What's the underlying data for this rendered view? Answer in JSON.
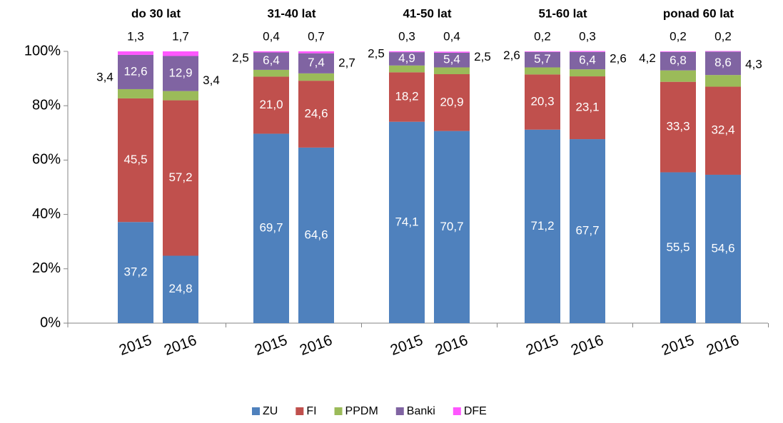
{
  "chart_data": {
    "type": "stacked_bar",
    "groups": [
      "do 30 lat",
      "31-40 lat",
      "41-50 lat",
      "51-60 lat",
      "ponad 60 lat"
    ],
    "categories": [
      "2015",
      "2016",
      "2015",
      "2016",
      "2015",
      "2016",
      "2015",
      "2016",
      "2015",
      "2016"
    ],
    "series": [
      {
        "name": "ZU",
        "color": "#4f81bd",
        "values": [
          37.2,
          24.8,
          69.7,
          64.6,
          74.1,
          70.7,
          71.2,
          67.7,
          55.5,
          54.6
        ],
        "value_labels": [
          "37,2",
          "24,8",
          "69,7",
          "64,6",
          "74,1",
          "70,7",
          "71,2",
          "67,7",
          "55,5",
          "54,6"
        ]
      },
      {
        "name": "FI",
        "color": "#c0504d",
        "values": [
          45.5,
          57.2,
          21.0,
          24.6,
          18.2,
          20.9,
          20.3,
          23.1,
          33.3,
          32.4
        ],
        "value_labels": [
          "45,5",
          "57,2",
          "21,0",
          "24,6",
          "18,2",
          "20,9",
          "20,3",
          "23,1",
          "33,3",
          "32,4"
        ]
      },
      {
        "name": "PPDM",
        "color": "#9bbb59",
        "values": [
          3.4,
          3.4,
          2.5,
          2.7,
          2.5,
          2.5,
          2.6,
          2.6,
          4.2,
          4.3
        ],
        "value_labels": [
          "3,4",
          "3,4",
          "2,5",
          "2,7",
          "2,5",
          "2,5",
          "2,6",
          "2,6",
          "4,2",
          "4,3"
        ]
      },
      {
        "name": "Banki",
        "color": "#8064a2",
        "values": [
          12.6,
          12.9,
          6.4,
          7.4,
          4.9,
          5.4,
          5.7,
          6.4,
          6.8,
          8.6
        ],
        "value_labels": [
          "12,6",
          "12,9",
          "6,4",
          "7,4",
          "4,9",
          "5,4",
          "5,7",
          "6,4",
          "6,8",
          "8,6"
        ]
      },
      {
        "name": "DFE",
        "color": "#ff57ff",
        "values": [
          1.3,
          1.7,
          0.4,
          0.7,
          0.3,
          0.4,
          0.2,
          0.3,
          0.2,
          0.2
        ],
        "value_labels": [
          "1,3",
          "1,7",
          "0,4",
          "0,7",
          "0,3",
          "0,4",
          "0,2",
          "0,3",
          "0,2",
          "0,2"
        ]
      }
    ],
    "ylim": [
      0,
      100
    ],
    "yticks": [
      {
        "value": 0,
        "label": "0%"
      },
      {
        "value": 20,
        "label": "20%"
      },
      {
        "value": 40,
        "label": "40%"
      },
      {
        "value": 60,
        "label": "60%"
      },
      {
        "value": 80,
        "label": "80%"
      },
      {
        "value": 100,
        "label": "100%"
      }
    ],
    "grid": false,
    "legend": "bottom"
  }
}
